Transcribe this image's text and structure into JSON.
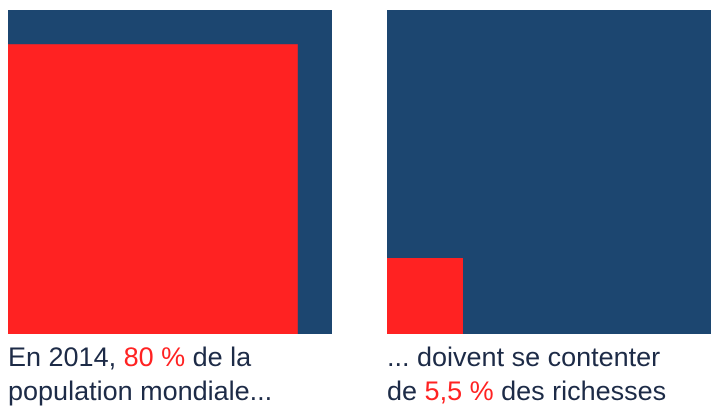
{
  "colors": {
    "background_square": "#1c4670",
    "share_square": "#ff2222",
    "caption_text": "#1d2b47",
    "highlight_text": "#ff2222"
  },
  "chart_data": [
    {
      "type": "area",
      "shape": "nested-square",
      "share": 0.8,
      "caption": {
        "line1_prefix": "En 2014, ",
        "line1_highlight": "80 %",
        "line1_suffix": " de la",
        "line2": "population mondiale..."
      }
    },
    {
      "type": "area",
      "shape": "nested-square",
      "share": 0.055,
      "caption": {
        "line1": "... doivent se contenter",
        "line2_prefix": "de ",
        "line2_highlight": "5,5 %",
        "line2_suffix": " des richesses"
      }
    }
  ]
}
